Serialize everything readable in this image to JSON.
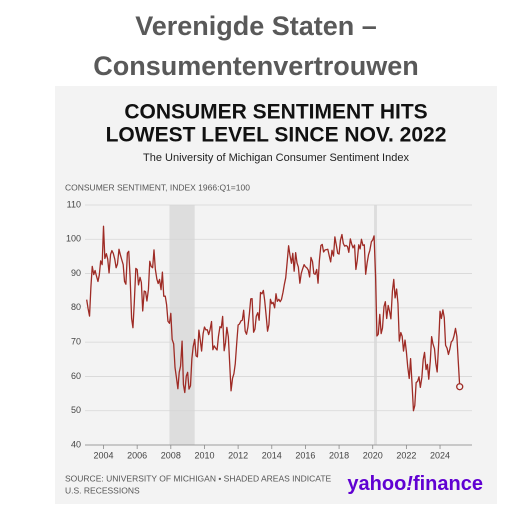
{
  "heading": [
    "Verenigde Staten –",
    "Consumentenvertrouwen"
  ],
  "chart_data": {
    "type": "line",
    "title": [
      "CONSUMER SENTIMENT HITS",
      "LOWEST LEVEL SINCE NOV. 2022"
    ],
    "subtitle": "The University of Michigan Consumer Sentiment Index",
    "y_label": "CONSUMER SENTIMENT, INDEX 1966:Q1=100",
    "source": [
      "SOURCE: UNIVERSITY OF MICHIGAN • SHADED AREAS INDICATE",
      "U.S. RECESSIONS"
    ],
    "logo": [
      "yahoo",
      "!",
      "finance"
    ],
    "color": "#9e2b25",
    "grid": true,
    "recessions": [
      [
        2007.92,
        2009.42
      ],
      [
        2020.08,
        2020.25
      ]
    ],
    "xlim": [
      2002.9,
      2025.9
    ],
    "xticks": [
      2004,
      2006,
      2008,
      2010,
      2012,
      2014,
      2016,
      2018,
      2020,
      2022,
      2024
    ],
    "ylim": [
      40,
      110
    ],
    "yticks": [
      40,
      50,
      60,
      70,
      80,
      90,
      100,
      110
    ],
    "x": [
      2003.0,
      2003.08,
      2003.17,
      2003.25,
      2003.33,
      2003.42,
      2003.5,
      2003.58,
      2003.67,
      2003.75,
      2003.83,
      2003.92,
      2004.0,
      2004.08,
      2004.17,
      2004.25,
      2004.33,
      2004.42,
      2004.5,
      2004.58,
      2004.67,
      2004.75,
      2004.83,
      2004.92,
      2005.0,
      2005.08,
      2005.17,
      2005.25,
      2005.33,
      2005.42,
      2005.5,
      2005.58,
      2005.67,
      2005.75,
      2005.83,
      2005.92,
      2006.0,
      2006.08,
      2006.17,
      2006.25,
      2006.33,
      2006.42,
      2006.5,
      2006.58,
      2006.67,
      2006.75,
      2006.83,
      2006.92,
      2007.0,
      2007.08,
      2007.17,
      2007.25,
      2007.33,
      2007.42,
      2007.5,
      2007.58,
      2007.67,
      2007.75,
      2007.83,
      2007.92,
      2008.0,
      2008.08,
      2008.17,
      2008.25,
      2008.33,
      2008.42,
      2008.5,
      2008.58,
      2008.67,
      2008.75,
      2008.83,
      2008.92,
      2009.0,
      2009.08,
      2009.17,
      2009.25,
      2009.33,
      2009.42,
      2009.5,
      2009.58,
      2009.67,
      2009.75,
      2009.83,
      2009.92,
      2010.0,
      2010.08,
      2010.17,
      2010.25,
      2010.33,
      2010.42,
      2010.5,
      2010.58,
      2010.67,
      2010.75,
      2010.83,
      2010.92,
      2011.0,
      2011.08,
      2011.17,
      2011.25,
      2011.33,
      2011.42,
      2011.5,
      2011.58,
      2011.67,
      2011.75,
      2011.83,
      2011.92,
      2012.0,
      2012.08,
      2012.17,
      2012.25,
      2012.33,
      2012.42,
      2012.5,
      2012.58,
      2012.67,
      2012.75,
      2012.83,
      2012.92,
      2013.0,
      2013.08,
      2013.17,
      2013.25,
      2013.33,
      2013.42,
      2013.5,
      2013.58,
      2013.67,
      2013.75,
      2013.83,
      2013.92,
      2014.0,
      2014.08,
      2014.17,
      2014.25,
      2014.33,
      2014.42,
      2014.5,
      2014.58,
      2014.67,
      2014.75,
      2014.83,
      2014.92,
      2015.0,
      2015.08,
      2015.17,
      2015.25,
      2015.33,
      2015.42,
      2015.5,
      2015.58,
      2015.67,
      2015.75,
      2015.83,
      2015.92,
      2016.0,
      2016.08,
      2016.17,
      2016.25,
      2016.33,
      2016.42,
      2016.5,
      2016.58,
      2016.67,
      2016.75,
      2016.83,
      2016.92,
      2017.0,
      2017.08,
      2017.17,
      2017.25,
      2017.33,
      2017.42,
      2017.5,
      2017.58,
      2017.67,
      2017.75,
      2017.83,
      2017.92,
      2018.0,
      2018.08,
      2018.17,
      2018.25,
      2018.33,
      2018.42,
      2018.5,
      2018.58,
      2018.67,
      2018.75,
      2018.83,
      2018.92,
      2019.0,
      2019.08,
      2019.17,
      2019.25,
      2019.33,
      2019.42,
      2019.5,
      2019.58,
      2019.67,
      2019.75,
      2019.83,
      2019.92,
      2020.0,
      2020.08,
      2020.17,
      2020.25,
      2020.33,
      2020.42,
      2020.5,
      2020.58,
      2020.67,
      2020.75,
      2020.83,
      2020.92,
      2021.0,
      2021.08,
      2021.17,
      2021.25,
      2021.33,
      2021.42,
      2021.5,
      2021.58,
      2021.67,
      2021.75,
      2021.83,
      2021.92,
      2022.0,
      2022.08,
      2022.17,
      2022.25,
      2022.33,
      2022.42,
      2022.5,
      2022.58,
      2022.67,
      2022.75,
      2022.83,
      2022.92,
      2023.0,
      2023.08,
      2023.17,
      2023.25,
      2023.33,
      2023.42,
      2023.5,
      2023.58,
      2023.67,
      2023.75,
      2023.83,
      2023.92,
      2024.0,
      2024.08,
      2024.17,
      2024.25,
      2024.33,
      2024.42,
      2024.5,
      2024.58,
      2024.67,
      2024.75,
      2024.83,
      2024.92,
      2025.0,
      2025.08,
      2025.17
    ],
    "values": [
      82.4,
      79.9,
      77.6,
      86.0,
      92.1,
      89.7,
      90.9,
      89.3,
      87.7,
      89.6,
      93.7,
      92.6,
      103.8,
      94.4,
      95.8,
      94.2,
      90.2,
      95.6,
      96.7,
      95.9,
      94.2,
      91.7,
      92.8,
      97.1,
      95.5,
      94.1,
      92.6,
      87.7,
      86.9,
      96.0,
      96.5,
      89.1,
      76.9,
      74.2,
      81.6,
      91.5,
      91.2,
      86.7,
      88.9,
      87.4,
      79.1,
      84.9,
      84.7,
      82.0,
      85.4,
      93.6,
      92.1,
      91.7,
      96.9,
      91.3,
      88.4,
      87.1,
      88.3,
      85.3,
      90.4,
      83.4,
      83.4,
      80.9,
      76.1,
      75.5,
      78.4,
      70.8,
      69.5,
      62.6,
      59.8,
      56.4,
      61.2,
      63.0,
      70.3,
      57.6,
      55.3,
      60.1,
      61.2,
      56.3,
      57.3,
      65.1,
      68.7,
      70.8,
      66.0,
      65.7,
      73.5,
      70.6,
      67.4,
      72.5,
      74.4,
      73.6,
      73.6,
      72.2,
      73.6,
      76.0,
      67.8,
      68.9,
      68.2,
      67.7,
      71.6,
      74.5,
      74.2,
      77.5,
      67.5,
      69.8,
      74.3,
      71.5,
      63.7,
      55.8,
      59.5,
      60.8,
      63.7,
      69.9,
      75.0,
      75.3,
      76.2,
      76.4,
      79.3,
      73.2,
      72.3,
      74.3,
      78.3,
      82.6,
      82.7,
      72.9,
      73.8,
      77.6,
      78.6,
      76.4,
      84.5,
      84.1,
      85.1,
      82.1,
      77.5,
      73.2,
      75.1,
      82.5,
      81.2,
      81.6,
      80.0,
      84.1,
      81.9,
      82.5,
      81.8,
      82.5,
      84.6,
      86.9,
      88.8,
      93.6,
      98.1,
      95.4,
      93.0,
      95.9,
      90.7,
      96.1,
      93.1,
      91.9,
      87.2,
      90.0,
      91.3,
      92.6,
      92.0,
      91.7,
      91.0,
      89.0,
      94.7,
      93.5,
      90.0,
      89.8,
      91.2,
      87.2,
      93.8,
      98.2,
      98.5,
      96.3,
      96.9,
      97.0,
      97.1,
      95.1,
      93.4,
      96.8,
      95.1,
      100.7,
      98.5,
      95.9,
      95.7,
      99.7,
      101.4,
      98.8,
      98.0,
      98.2,
      97.9,
      96.2,
      100.1,
      98.6,
      97.5,
      98.3,
      91.2,
      93.8,
      98.4,
      97.2,
      100.0,
      98.2,
      98.4,
      89.8,
      93.2,
      95.5,
      96.8,
      99.3,
      99.8,
      101.0,
      89.1,
      71.8,
      72.3,
      78.1,
      72.5,
      74.1,
      80.4,
      81.8,
      76.9,
      80.7,
      79.0,
      76.8,
      84.9,
      88.3,
      82.9,
      85.5,
      81.2,
      70.3,
      72.8,
      71.7,
      67.4,
      70.6,
      67.2,
      62.8,
      59.4,
      65.2,
      58.4,
      50.0,
      51.5,
      58.2,
      58.6,
      59.9,
      56.8,
      59.7,
      64.9,
      67.0,
      62.0,
      63.5,
      59.2,
      64.4,
      71.6,
      69.5,
      68.1,
      63.8,
      61.3,
      69.7,
      79.0,
      76.9,
      79.4,
      77.2,
      69.1,
      68.2,
      66.4,
      67.9,
      70.1,
      70.5,
      71.8,
      74.0,
      71.7,
      64.7,
      57.0
    ]
  }
}
